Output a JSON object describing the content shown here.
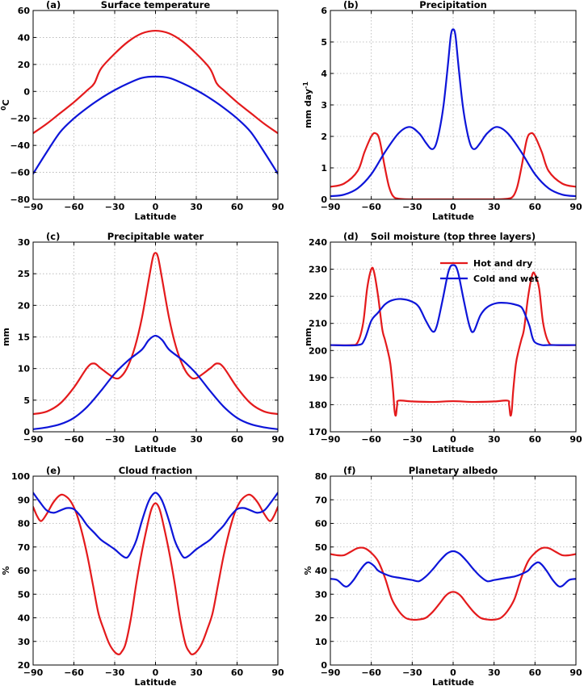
{
  "colors": {
    "hot_dry": "#e41a1c",
    "cold_wet": "#0d15d9"
  },
  "legend": {
    "panel": 3,
    "placement": "top-right",
    "entries": [
      "Hot and dry",
      "Cold and wet"
    ]
  },
  "chart_data": [
    {
      "type": "line",
      "panel_label": "(a)",
      "title": "Surface temperature",
      "xlabel": "Latitude",
      "ylabel": "0C",
      "ylabel_sup": "0",
      "ylabel_main": "C",
      "xlim": [
        -90,
        90
      ],
      "ylim": [
        -80,
        60
      ],
      "xticks": [
        -90,
        -60,
        -30,
        0,
        30,
        60,
        90
      ],
      "yticks": [
        -80,
        -60,
        -40,
        -20,
        0,
        20,
        40,
        60
      ],
      "grid": true,
      "series": [
        {
          "name": "Hot and dry",
          "color": "#e41a1c",
          "x": [
            -90,
            -80,
            -70,
            -60,
            -50,
            -45,
            -40,
            -30,
            -20,
            -10,
            0,
            10,
            20,
            30,
            40,
            45,
            50,
            60,
            70,
            80,
            90
          ],
          "y": [
            -31,
            -24,
            -16,
            -8,
            1,
            6,
            17,
            28,
            37,
            43,
            45,
            43,
            37,
            28,
            17,
            6,
            1,
            -8,
            -16,
            -24,
            -31
          ]
        },
        {
          "name": "Cold and wet",
          "color": "#0d15d9",
          "x": [
            -90,
            -80,
            -70,
            -60,
            -50,
            -40,
            -30,
            -20,
            -10,
            0,
            10,
            20,
            30,
            40,
            50,
            60,
            70,
            80,
            90
          ],
          "y": [
            -61,
            -45,
            -30,
            -20,
            -12,
            -5,
            1,
            6,
            10,
            11,
            10,
            6,
            1,
            -5,
            -12,
            -20,
            -30,
            -45,
            -61
          ]
        }
      ]
    },
    {
      "type": "line",
      "panel_label": "(b)",
      "title": "Precipitation",
      "xlabel": "Latitude",
      "ylabel": "mm day-1",
      "ylabel_sup": "-1",
      "ylabel_main": "mm day",
      "xlim": [
        -90,
        90
      ],
      "ylim": [
        0,
        6
      ],
      "xticks": [
        -90,
        -60,
        -30,
        0,
        30,
        60,
        90
      ],
      "yticks": [
        0,
        1,
        2,
        3,
        4,
        5,
        6
      ],
      "grid": true,
      "series": [
        {
          "name": "Hot and dry",
          "color": "#e41a1c",
          "x": [
            -90,
            -80,
            -70,
            -65,
            -60,
            -57,
            -54,
            -50,
            -47,
            -44,
            -40,
            -30,
            0,
            30,
            40,
            44,
            47,
            50,
            54,
            57,
            60,
            65,
            70,
            80,
            90
          ],
          "y": [
            0.4,
            0.5,
            0.9,
            1.5,
            2.0,
            2.1,
            1.9,
            1.0,
            0.4,
            0.1,
            0.02,
            0,
            0,
            0,
            0.02,
            0.1,
            0.4,
            1.0,
            1.9,
            2.1,
            2.0,
            1.5,
            0.9,
            0.5,
            0.4
          ]
        },
        {
          "name": "Cold and wet",
          "color": "#0d15d9",
          "x": [
            -90,
            -80,
            -70,
            -60,
            -50,
            -40,
            -32,
            -25,
            -20,
            -16,
            -13,
            -10,
            -7,
            -4,
            -2,
            -1,
            0,
            1,
            2,
            4,
            7,
            10,
            13,
            16,
            20,
            25,
            32,
            40,
            50,
            60,
            70,
            80,
            90
          ],
          "y": [
            0.1,
            0.15,
            0.35,
            0.8,
            1.5,
            2.1,
            2.3,
            2.1,
            1.8,
            1.6,
            1.7,
            2.2,
            3.0,
            4.2,
            5.1,
            5.35,
            5.4,
            5.35,
            5.1,
            4.2,
            3.0,
            2.2,
            1.7,
            1.6,
            1.8,
            2.1,
            2.3,
            2.1,
            1.5,
            0.8,
            0.35,
            0.15,
            0.1
          ]
        }
      ]
    },
    {
      "type": "line",
      "panel_label": "(c)",
      "title": "Precipitable water",
      "xlabel": "Latitude",
      "ylabel": "mm",
      "xlim": [
        -90,
        90
      ],
      "ylim": [
        0,
        30
      ],
      "xticks": [
        -90,
        -60,
        -30,
        0,
        30,
        60,
        90
      ],
      "yticks": [
        0,
        5,
        10,
        15,
        20,
        25,
        30
      ],
      "grid": true,
      "series": [
        {
          "name": "Hot and dry",
          "color": "#e41a1c",
          "x": [
            -90,
            -80,
            -70,
            -60,
            -50,
            -45,
            -40,
            -30,
            -25,
            -20,
            -15,
            -10,
            -5,
            -2,
            0,
            2,
            5,
            10,
            15,
            20,
            25,
            30,
            40,
            45,
            50,
            60,
            70,
            80,
            90
          ],
          "y": [
            2.8,
            3.2,
            4.5,
            7.0,
            10.2,
            10.8,
            10.0,
            8.5,
            8.8,
            10.5,
            13.5,
            18.0,
            24.0,
            27.5,
            28.3,
            27.5,
            24.0,
            18.0,
            13.5,
            10.5,
            8.8,
            8.5,
            10.0,
            10.8,
            10.2,
            7.0,
            4.5,
            3.2,
            2.8
          ]
        },
        {
          "name": "Cold and wet",
          "color": "#0d15d9",
          "x": [
            -90,
            -80,
            -70,
            -60,
            -50,
            -40,
            -30,
            -20,
            -10,
            -5,
            0,
            5,
            10,
            20,
            30,
            40,
            50,
            60,
            70,
            80,
            90
          ],
          "y": [
            0.4,
            0.7,
            1.2,
            2.2,
            4.0,
            6.5,
            9.2,
            11.3,
            13.0,
            14.5,
            15.2,
            14.5,
            13.0,
            11.3,
            9.2,
            6.5,
            4.0,
            2.2,
            1.2,
            0.7,
            0.4
          ]
        }
      ]
    },
    {
      "type": "line",
      "panel_label": "(d)",
      "title": "Soil moisture (top three layers)",
      "xlabel": "Latitude",
      "ylabel": "mm",
      "xlim": [
        -90,
        90
      ],
      "ylim": [
        170,
        240
      ],
      "xticks": [
        -90,
        -60,
        -30,
        0,
        30,
        60,
        90
      ],
      "yticks": [
        170,
        180,
        190,
        200,
        210,
        220,
        230,
        240
      ],
      "grid": true,
      "series": [
        {
          "name": "Hot and dry",
          "color": "#e41a1c",
          "x": [
            -90,
            -75,
            -70,
            -66,
            -63,
            -60,
            -58,
            -55,
            -52,
            -50,
            -48,
            -46,
            -44,
            -43,
            -42,
            -41,
            -40,
            -30,
            -15,
            0,
            15,
            30,
            40,
            41,
            42,
            43,
            44,
            46,
            48,
            50,
            52,
            55,
            58,
            60,
            63,
            66,
            70,
            75,
            90
          ],
          "y": [
            202,
            202,
            203,
            210,
            223,
            230,
            229,
            220,
            208,
            204,
            200,
            195,
            185,
            178,
            176,
            180,
            181.5,
            181.2,
            181,
            181.3,
            181,
            181.2,
            181.5,
            180,
            176,
            178,
            185,
            195,
            200,
            204,
            208,
            220,
            228,
            228,
            223,
            210,
            203,
            202,
            202
          ]
        },
        {
          "name": "Cold and wet",
          "color": "#0d15d9",
          "x": [
            -90,
            -70,
            -65,
            -60,
            -55,
            -50,
            -45,
            -38,
            -30,
            -25,
            -20,
            -15,
            -12,
            -8,
            -4,
            -2,
            0,
            2,
            4,
            8,
            12,
            15,
            20,
            25,
            32,
            40,
            45,
            50,
            53,
            56,
            58,
            60,
            65,
            70,
            90
          ],
          "y": [
            202,
            202,
            204,
            211,
            214,
            217,
            218.5,
            219,
            218,
            216,
            211,
            207,
            209,
            218,
            228,
            231,
            231.5,
            231,
            228,
            218,
            209,
            207,
            213,
            216,
            217.5,
            217.5,
            217,
            216,
            213,
            209,
            205,
            203,
            202,
            202,
            202
          ]
        }
      ]
    },
    {
      "type": "line",
      "panel_label": "(e)",
      "title": "Cloud fraction",
      "xlabel": "Latitude",
      "ylabel": "%",
      "xlim": [
        -90,
        90
      ],
      "ylim": [
        20,
        100
      ],
      "xticks": [
        -90,
        -60,
        -30,
        0,
        30,
        60,
        90
      ],
      "yticks": [
        20,
        30,
        40,
        50,
        60,
        70,
        80,
        90,
        100
      ],
      "grid": true,
      "series": [
        {
          "name": "Hot and dry",
          "color": "#e41a1c",
          "x": [
            -90,
            -87,
            -84,
            -80,
            -75,
            -70,
            -66,
            -62,
            -58,
            -54,
            -50,
            -46,
            -42,
            -38,
            -34,
            -30,
            -27,
            -25,
            -22,
            -18,
            -14,
            -10,
            -6,
            -3,
            0,
            3,
            6,
            10,
            14,
            18,
            22,
            25,
            27,
            30,
            34,
            38,
            42,
            46,
            50,
            54,
            58,
            62,
            66,
            70,
            75,
            80,
            84,
            87,
            90
          ],
          "y": [
            87,
            83,
            81,
            84,
            89,
            92,
            91.5,
            89,
            84,
            76,
            66,
            54,
            42,
            35,
            29,
            25.5,
            24.5,
            25.5,
            29,
            40,
            55,
            68,
            79,
            86,
            88.5,
            86,
            79,
            68,
            55,
            40,
            29,
            25.5,
            24.5,
            25.5,
            29,
            35,
            42,
            54,
            66,
            76,
            84,
            89,
            91.5,
            92,
            89,
            84,
            81,
            83,
            87
          ]
        },
        {
          "name": "Cold and wet",
          "color": "#0d15d9",
          "x": [
            -90,
            -85,
            -80,
            -75,
            -70,
            -65,
            -60,
            -55,
            -50,
            -45,
            -40,
            -35,
            -30,
            -25,
            -22,
            -20,
            -17,
            -14,
            -10,
            -6,
            -3,
            0,
            3,
            6,
            10,
            14,
            17,
            20,
            22,
            25,
            30,
            35,
            40,
            45,
            50,
            55,
            60,
            65,
            70,
            75,
            80,
            85,
            90
          ],
          "y": [
            93,
            89,
            85.5,
            84.5,
            85.5,
            86.5,
            86,
            83,
            79,
            76,
            73,
            71,
            69,
            66.5,
            65.5,
            66,
            69,
            73,
            81,
            88,
            91.5,
            93,
            91.5,
            88,
            81,
            73,
            69,
            66,
            65.5,
            66.5,
            69,
            71,
            73,
            76,
            79,
            83,
            86,
            86.5,
            85.5,
            84.5,
            85.5,
            89,
            93
          ]
        }
      ]
    },
    {
      "type": "line",
      "panel_label": "(f)",
      "title": "Planetary albedo",
      "xlabel": "Latitude",
      "ylabel": "%",
      "xlim": [
        -90,
        90
      ],
      "ylim": [
        0,
        80
      ],
      "xticks": [
        -90,
        -60,
        -30,
        0,
        30,
        60,
        90
      ],
      "yticks": [
        0,
        10,
        20,
        30,
        40,
        50,
        60,
        70,
        80
      ],
      "grid": true,
      "series": [
        {
          "name": "Hot and dry",
          "color": "#e41a1c",
          "x": [
            -90,
            -85,
            -80,
            -75,
            -70,
            -65,
            -60,
            -55,
            -50,
            -45,
            -40,
            -35,
            -30,
            -25,
            -20,
            -15,
            -10,
            -6,
            -3,
            0,
            3,
            6,
            10,
            15,
            20,
            25,
            30,
            35,
            40,
            45,
            50,
            55,
            60,
            65,
            70,
            75,
            80,
            85,
            90
          ],
          "y": [
            47,
            46.5,
            46.5,
            48,
            49.5,
            49.5,
            47.5,
            44,
            37,
            28,
            23,
            20,
            19.2,
            19.3,
            20,
            22.5,
            26,
            29,
            30.5,
            31,
            30.5,
            29,
            26,
            22.5,
            20,
            19.3,
            19.2,
            20,
            23,
            28,
            37,
            44,
            47.5,
            49.5,
            49.5,
            48,
            46.5,
            46.5,
            47
          ]
        },
        {
          "name": "Cold and wet",
          "color": "#0d15d9",
          "x": [
            -90,
            -85,
            -80,
            -77,
            -73,
            -69,
            -65,
            -62,
            -58,
            -55,
            -50,
            -45,
            -40,
            -35,
            -30,
            -25,
            -20,
            -15,
            -10,
            -5,
            -2,
            0,
            2,
            5,
            10,
            15,
            20,
            25,
            30,
            35,
            40,
            45,
            50,
            55,
            58,
            62,
            65,
            69,
            73,
            77,
            80,
            85,
            90
          ],
          "y": [
            36.5,
            36,
            33.5,
            33.5,
            36,
            39.5,
            42.5,
            43.5,
            42,
            40,
            38.5,
            37.5,
            37,
            36.5,
            36,
            35.5,
            37.5,
            40.5,
            44,
            47,
            48,
            48.2,
            48,
            47,
            44,
            40.5,
            37.5,
            35.5,
            36,
            36.5,
            37,
            37.5,
            38.5,
            40,
            42,
            43.5,
            42.5,
            39.5,
            36,
            33.5,
            33.5,
            36,
            36.5
          ]
        }
      ]
    }
  ]
}
